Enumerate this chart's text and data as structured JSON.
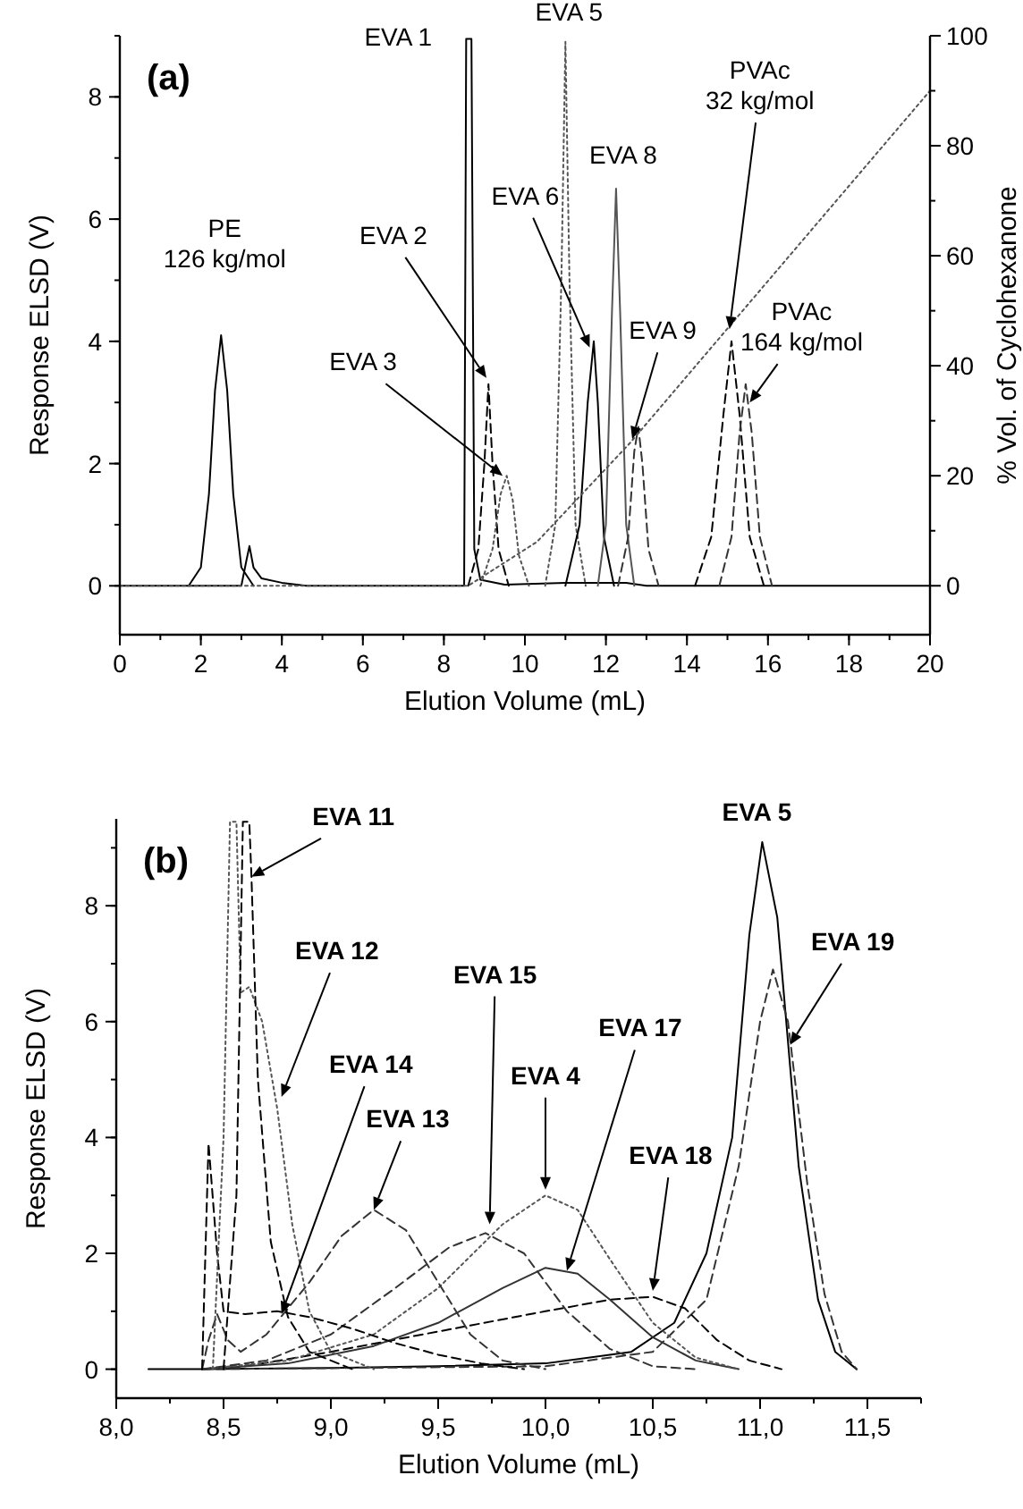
{
  "chart_data": [
    {
      "type": "line",
      "title": "(a)",
      "xlabel": "Elution Volume (mL)",
      "ylabel": "Response ELSD (V)",
      "y2label": "% Vol. of Cyclohexanone",
      "xlim": [
        0,
        20
      ],
      "xticks": [
        0,
        2,
        4,
        6,
        8,
        10,
        12,
        14,
        16,
        18,
        20
      ],
      "ylim": [
        -0.8,
        9
      ],
      "yticks": [
        0,
        2,
        4,
        6,
        8
      ],
      "y2lim": [
        -8.9,
        100
      ],
      "y2ticks": [
        0,
        20,
        40,
        60,
        80,
        100
      ],
      "grid": false,
      "series": [
        {
          "color": "#000000",
          "line_style": "solid",
          "x": [
            1.7,
            2.0,
            2.2,
            2.35,
            2.5,
            2.65,
            2.8,
            3.0,
            3.3
          ],
          "values": [
            0,
            0.3,
            1.5,
            3.2,
            4.1,
            3.2,
            1.5,
            0.3,
            0
          ]
        },
        {
          "color": "#000000",
          "line_style": "solid",
          "x": [
            0,
            3.0,
            3.12,
            3.2,
            3.3,
            3.5,
            4.0,
            4.6,
            8.5,
            8.55,
            8.68,
            8.75,
            8.9,
            9.5,
            11,
            12.5,
            13,
            20
          ],
          "values": [
            0,
            0,
            0.4,
            0.65,
            0.3,
            0.12,
            0.05,
            0,
            0,
            8.95,
            8.95,
            0.6,
            0.1,
            0.02,
            0.05,
            0.05,
            0,
            0
          ]
        },
        {
          "color": "#000000",
          "line_style": "dashed",
          "x": [
            8.6,
            8.85,
            9.0,
            9.1,
            9.2,
            9.35,
            9.6
          ],
          "values": [
            0,
            0.6,
            2.0,
            3.3,
            2.0,
            0.6,
            0
          ]
        },
        {
          "color": "#555555",
          "line_style": "dotted",
          "x": [
            8.9,
            9.2,
            9.4,
            9.55,
            9.7,
            9.85,
            10.1
          ],
          "values": [
            0,
            0.6,
            1.5,
            1.8,
            1.4,
            0.5,
            0
          ]
        },
        {
          "color": "#555555",
          "line_style": "dotted",
          "x": [
            10.5,
            10.75,
            10.9,
            11.0,
            11.1,
            11.25,
            11.5
          ],
          "values": [
            0,
            1.0,
            5,
            8.9,
            5,
            1.0,
            0
          ]
        },
        {
          "color": "#000000",
          "line_style": "solid",
          "x": [
            11.0,
            11.35,
            11.55,
            11.7,
            11.8,
            11.95,
            12.2
          ],
          "values": [
            0,
            1.0,
            3,
            4.0,
            3,
            0.8,
            0
          ]
        },
        {
          "color": "#555555",
          "line_style": "solid",
          "x": [
            11.8,
            12.0,
            12.15,
            12.25,
            12.35,
            12.5,
            12.7
          ],
          "values": [
            0,
            1.0,
            4.5,
            6.5,
            4.5,
            1.0,
            0
          ]
        },
        {
          "color": "#333333",
          "line_style": "dashed",
          "x": [
            12.3,
            12.55,
            12.7,
            12.8,
            12.9,
            13.05,
            13.3
          ],
          "values": [
            0,
            0.8,
            2.2,
            2.6,
            2.0,
            0.6,
            0
          ]
        },
        {
          "color": "#000000",
          "line_style": "dashed",
          "x": [
            14.2,
            14.6,
            14.9,
            15.1,
            15.3,
            15.55,
            15.9
          ],
          "values": [
            0,
            0.8,
            2.8,
            4.0,
            2.8,
            0.8,
            0
          ]
        },
        {
          "color": "#333333",
          "line_style": "dashed",
          "x": [
            14.8,
            15.1,
            15.3,
            15.45,
            15.6,
            15.8,
            16.1
          ],
          "values": [
            0,
            0.8,
            2.5,
            3.3,
            2.5,
            0.8,
            0
          ]
        },
        {
          "color": "#555555",
          "line_style": "dotted",
          "axis": "y2",
          "x": [
            0,
            8.6,
            10.3,
            12.6,
            20
          ],
          "values": [
            0,
            0,
            8,
            26,
            90
          ]
        }
      ],
      "annotations": [
        {
          "text": "EVA 1",
          "x": 8.55,
          "y": 8.95
        },
        {
          "text": "EVA 5",
          "x": 11.0,
          "y": 8.9
        },
        {
          "text": "PE\n126 kg/mol",
          "x": 2.5,
          "y": 4.1
        },
        {
          "text": "EVA 2",
          "x": 9.05,
          "y": 3.4
        },
        {
          "text": "EVA 3",
          "x": 9.45,
          "y": 1.8
        },
        {
          "text": "EVA 6",
          "x": 11.6,
          "y": 3.9
        },
        {
          "text": "EVA 8",
          "x": 12.25,
          "y": 6.5
        },
        {
          "text": "EVA 9",
          "x": 12.65,
          "y": 2.4
        },
        {
          "text": "PVAc\n32 kg/mol",
          "x": 15.05,
          "y": 4.2
        },
        {
          "text": "PVAc\n164 kg/mol",
          "x": 15.55,
          "y": 3.0
        }
      ]
    },
    {
      "type": "line",
      "title": "(b)",
      "xlabel": "Elution Volume (mL)",
      "ylabel": "Response ELSD (V)",
      "xlim": [
        8.0,
        11.75
      ],
      "xticks": [
        {
          "value": 8.0,
          "label": "8,0"
        },
        {
          "value": 8.5,
          "label": "8,5"
        },
        {
          "value": 9.0,
          "label": "9,0"
        },
        {
          "value": 9.5,
          "label": "9,5"
        },
        {
          "value": 10.0,
          "label": "10,0"
        },
        {
          "value": 10.5,
          "label": "10,5"
        },
        {
          "value": 11.0,
          "label": "11,0"
        },
        {
          "value": 11.5,
          "label": "11,5"
        }
      ],
      "ylim": [
        -0.5,
        9.5
      ],
      "yticks": [
        0,
        2,
        4,
        6,
        8
      ],
      "grid": false,
      "series": [
        {
          "color": "#000000",
          "line_style": "solid",
          "x": [
            8.15,
            8.4,
            9.0,
            9.5,
            10.0,
            10.4,
            10.6,
            10.75,
            10.87,
            10.95,
            11.01,
            11.08,
            11.18,
            11.27,
            11.35,
            11.45
          ],
          "values": [
            0,
            0,
            0.02,
            0.05,
            0.1,
            0.3,
            0.8,
            2,
            4.0,
            7.5,
            9.1,
            7.8,
            3.5,
            1.2,
            0.3,
            0
          ]
        },
        {
          "color": "#333333",
          "line_style": "dashed",
          "x": [
            8.4,
            10.0,
            10.5,
            10.75,
            10.9,
            11.0,
            11.06,
            11.13,
            11.22,
            11.3,
            11.38,
            11.45
          ],
          "values": [
            0,
            0.05,
            0.3,
            1.2,
            3.5,
            6.0,
            6.9,
            6.0,
            3.2,
            1.3,
            0.3,
            0
          ]
        },
        {
          "color": "#000000",
          "line_style": "dashed",
          "x": [
            8.4,
            8.6,
            9.0,
            9.5,
            10.0,
            10.3,
            10.5,
            10.65,
            10.8,
            10.95,
            11.1
          ],
          "values": [
            0,
            0.05,
            0.3,
            0.65,
            1.0,
            1.2,
            1.25,
            1.05,
            0.5,
            0.15,
            0
          ]
        },
        {
          "color": "#333333",
          "line_style": "solid",
          "x": [
            8.4,
            8.8,
            9.2,
            9.5,
            9.8,
            10.0,
            10.15,
            10.3,
            10.5,
            10.7,
            10.9
          ],
          "values": [
            0,
            0.1,
            0.4,
            0.8,
            1.4,
            1.75,
            1.65,
            1.2,
            0.55,
            0.15,
            0
          ]
        },
        {
          "color": "#555555",
          "line_style": "dotted",
          "x": [
            8.4,
            8.8,
            9.2,
            9.5,
            9.8,
            10.0,
            10.15,
            10.3,
            10.5,
            10.7,
            10.9
          ],
          "values": [
            0,
            0.15,
            0.6,
            1.4,
            2.5,
            3.0,
            2.75,
            1.9,
            0.8,
            0.2,
            0
          ]
        },
        {
          "color": "#333333",
          "line_style": "dashed",
          "x": [
            8.4,
            8.7,
            9.0,
            9.3,
            9.55,
            9.72,
            9.9,
            10.1,
            10.3,
            10.5,
            10.7
          ],
          "values": [
            0,
            0.15,
            0.6,
            1.4,
            2.1,
            2.35,
            2.0,
            1.0,
            0.35,
            0.05,
            0
          ]
        },
        {
          "color": "#333333",
          "line_style": "dashed",
          "x": [
            8.4,
            8.43,
            8.47,
            8.52,
            8.58,
            8.7,
            8.9,
            9.05,
            9.2,
            9.35,
            9.5,
            9.65,
            9.8,
            10.0
          ],
          "values": [
            0,
            0.5,
            0.95,
            0.5,
            0.3,
            0.6,
            1.5,
            2.3,
            2.75,
            2.4,
            1.5,
            0.6,
            0.15,
            0
          ]
        },
        {
          "color": "#000000",
          "line_style": "dashed",
          "x": [
            8.4,
            8.43,
            8.47,
            8.5,
            8.6,
            8.75,
            8.9,
            9.1,
            9.3,
            9.5,
            9.7,
            9.9
          ],
          "values": [
            0,
            3.9,
            2.0,
            1.0,
            0.95,
            1.0,
            0.9,
            0.7,
            0.45,
            0.25,
            0.1,
            0
          ]
        },
        {
          "color": "#555555",
          "line_style": "dotted",
          "x": [
            8.45,
            8.5,
            8.53,
            8.56,
            8.58,
            8.62,
            8.68,
            8.75,
            8.82,
            8.9,
            9.0,
            9.2
          ],
          "values": [
            0,
            4,
            9.45,
            9.45,
            6.5,
            6.6,
            6.0,
            4.5,
            2.5,
            1.0,
            0.3,
            0
          ]
        },
        {
          "color": "#000000",
          "line_style": "dashed",
          "x": [
            8.5,
            8.56,
            8.59,
            8.62,
            8.63,
            8.66,
            8.72,
            8.8,
            8.9,
            9.1
          ],
          "values": [
            0,
            3.0,
            9.45,
            9.45,
            8.5,
            5.0,
            2.2,
            0.9,
            0.3,
            0
          ]
        }
      ],
      "annotations": [
        {
          "text": "EVA 11",
          "x": 8.63,
          "y": 8.5
        },
        {
          "text": "EVA 12",
          "x": 8.77,
          "y": 4.7
        },
        {
          "text": "EVA 14",
          "x": 8.77,
          "y": 0.95
        },
        {
          "text": "EVA 13",
          "x": 9.2,
          "y": 2.75
        },
        {
          "text": "EVA 15",
          "x": 9.74,
          "y": 2.5
        },
        {
          "text": "EVA 4",
          "x": 10.0,
          "y": 3.1
        },
        {
          "text": "EVA 17",
          "x": 10.1,
          "y": 1.7
        },
        {
          "text": "EVA 18",
          "x": 10.5,
          "y": 1.35
        },
        {
          "text": "EVA 19",
          "x": 11.14,
          "y": 5.6
        },
        {
          "text": "EVA 5",
          "x": 11.01,
          "y": 9.1
        }
      ]
    }
  ]
}
